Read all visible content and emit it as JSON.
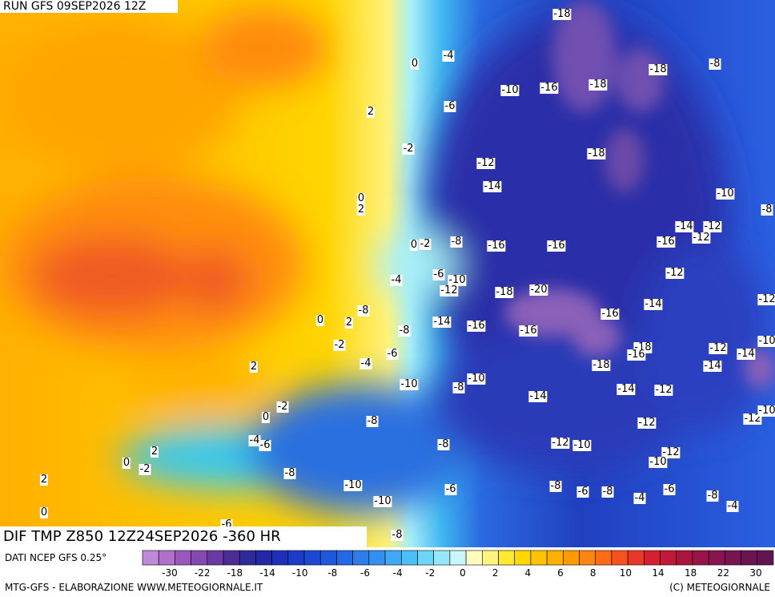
{
  "header": {
    "run": "RUN GFS 09SEP2026 12Z",
    "title": "DIF TMP Z850 12Z24SEP2026 -360 HR"
  },
  "contour_labels": [
    "-18",
    "-4",
    "0",
    "-18",
    "-8",
    "-10",
    "-16",
    "-18",
    "-6",
    "2",
    "-18",
    "-2",
    "-12",
    "-14",
    "-10",
    "0",
    "2",
    "-8",
    "-14",
    "-12",
    "-12",
    "-8",
    "0",
    "-2",
    "-16",
    "-16",
    "-16",
    "-12",
    "-4",
    "-6",
    "-10",
    "-12",
    "-18",
    "-20",
    "-14",
    "-12",
    "-8",
    "-16",
    "0",
    "2",
    "-8",
    "-14",
    "-16",
    "-16",
    "-18",
    "-16",
    "-12",
    "-14",
    "-10",
    "-2",
    "-6",
    "-4",
    "-18",
    "-14",
    "2",
    "-10",
    "-8",
    "-10",
    "-14",
    "-12",
    "-14",
    "-2",
    "0",
    "-8",
    "-12",
    "-12",
    "-10",
    "-4",
    "-6",
    "-8",
    "-12",
    "-10",
    "2",
    "-12",
    "-10",
    "0",
    "-2",
    "-8",
    "2",
    "-10",
    "-6",
    "-8",
    "-6",
    "-8",
    "-6",
    "-4",
    "-8",
    "-4",
    "-10",
    "0",
    "-8",
    "-6"
  ],
  "colorbar": {
    "colors": [
      "#c088d8",
      "#b070cc",
      "#9a58bc",
      "#8448b0",
      "#6c3aa4",
      "#4e2c98",
      "#302a9a",
      "#2228a8",
      "#1e30b8",
      "#1c3cc8",
      "#1c48d4",
      "#1e58dc",
      "#2468e4",
      "#2c7cea",
      "#3490f0",
      "#40a8f4",
      "#4cc0f6",
      "#6cd6f8",
      "#98e6fa",
      "#c8f6fc",
      "#fffcc0",
      "#fff480",
      "#ffea30",
      "#ffd800",
      "#ffc400",
      "#ffb000",
      "#ff9a00",
      "#ff8410",
      "#ff6a18",
      "#f85020",
      "#e83828",
      "#d42030",
      "#c01838",
      "#ac1440",
      "#981448",
      "#881450",
      "#781450",
      "#6c1450",
      "#601450"
    ],
    "ticks": [
      -30,
      -22,
      -18,
      -14,
      -10,
      -8,
      -6,
      -4,
      -2,
      0,
      2,
      4,
      6,
      8,
      10,
      14,
      18,
      22,
      30
    ]
  },
  "footer": {
    "source": "DATI NCEP GFS 0.25°",
    "left": "MTG-GFS - ELABORAZIONE WWW.METEOGIORNALE.IT",
    "right": "(C) METEOGIORNALE"
  }
}
